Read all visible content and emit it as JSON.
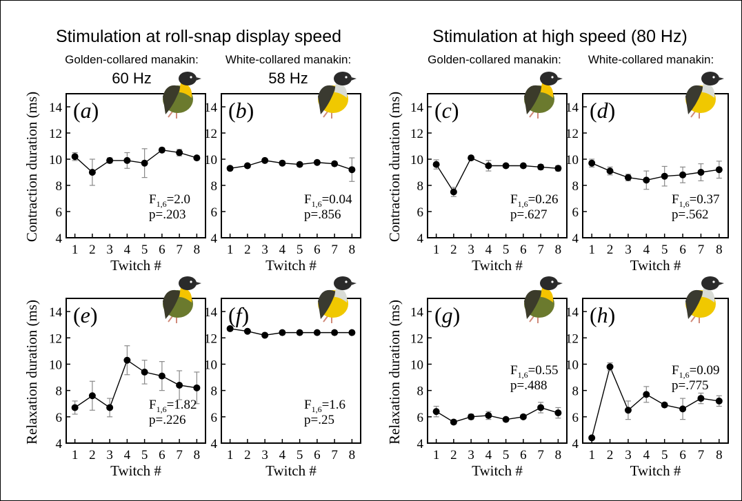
{
  "figure": {
    "left_group_title": "Stimulation at roll-snap display speed",
    "right_group_title": "Stimulation at high speed (80 Hz)",
    "species_golden": "Golden-collared manakin:",
    "species_white": "White-collared manakin:",
    "freq_golden": "60 Hz",
    "freq_white": "58 Hz",
    "row_ylabels": [
      "Contraction duration (ms)",
      "Relaxation duration (ms)"
    ],
    "xlabel": "Twitch #"
  },
  "chart_data": [
    {
      "panel": "a",
      "type": "line",
      "species": "golden",
      "x": [
        1,
        2,
        3,
        4,
        5,
        6,
        7,
        8
      ],
      "y": [
        10.2,
        9.0,
        9.9,
        9.9,
        9.7,
        10.7,
        10.5,
        10.1
      ],
      "err": [
        0.3,
        1.0,
        0.2,
        0.6,
        1.1,
        0.15,
        0.25,
        0.15
      ],
      "xlim": [
        0.5,
        8.5
      ],
      "ylim": [
        4,
        15
      ],
      "yticks": [
        4,
        6,
        8,
        10,
        12,
        14
      ],
      "stat_f": "=2.0",
      "stat_p": "p=.203",
      "stat_pos": "bottom"
    },
    {
      "panel": "b",
      "type": "line",
      "species": "white",
      "x": [
        1,
        2,
        3,
        4,
        5,
        6,
        7,
        8
      ],
      "y": [
        9.3,
        9.5,
        9.9,
        9.7,
        9.6,
        9.75,
        9.65,
        9.2
      ],
      "err": [
        0.15,
        0.15,
        0.15,
        0.15,
        0.15,
        0.15,
        0.15,
        0.9
      ],
      "xlim": [
        0.5,
        8.5
      ],
      "ylim": [
        4,
        15
      ],
      "yticks": [
        4,
        6,
        8,
        10,
        12,
        14
      ],
      "stat_f": "=0.04",
      "stat_p": "p=.856",
      "stat_pos": "bottom"
    },
    {
      "panel": "c",
      "type": "line",
      "species": "golden",
      "x": [
        1,
        2,
        3,
        4,
        5,
        6,
        7,
        8
      ],
      "y": [
        9.6,
        7.5,
        10.1,
        9.5,
        9.5,
        9.5,
        9.4,
        9.3
      ],
      "err": [
        0.35,
        0.35,
        0.15,
        0.4,
        0.15,
        0.15,
        0.2,
        0.2
      ],
      "xlim": [
        0.5,
        8.5
      ],
      "ylim": [
        4,
        15
      ],
      "yticks": [
        4,
        6,
        8,
        10,
        12,
        14
      ],
      "stat_f": "=0.26",
      "stat_p": "p=.627",
      "stat_pos": "bottom"
    },
    {
      "panel": "d",
      "type": "line",
      "species": "white",
      "x": [
        1,
        2,
        3,
        4,
        5,
        6,
        7,
        8
      ],
      "y": [
        9.7,
        9.1,
        8.6,
        8.4,
        8.7,
        8.8,
        9.0,
        9.2
      ],
      "err": [
        0.3,
        0.3,
        0.25,
        0.7,
        0.75,
        0.6,
        0.65,
        0.65
      ],
      "xlim": [
        0.5,
        8.5
      ],
      "ylim": [
        4,
        15
      ],
      "yticks": [
        4,
        6,
        8,
        10,
        12,
        14
      ],
      "stat_f": "=0.37",
      "stat_p": "p=.562",
      "stat_pos": "bottom"
    },
    {
      "panel": "e",
      "type": "line",
      "species": "golden",
      "x": [
        1,
        2,
        3,
        4,
        5,
        6,
        7,
        8
      ],
      "y": [
        6.7,
        7.6,
        6.7,
        10.3,
        9.4,
        9.1,
        8.4,
        8.2
      ],
      "err": [
        0.5,
        1.1,
        0.7,
        1.1,
        0.9,
        1.1,
        1.1,
        1.2
      ],
      "xlim": [
        0.5,
        8.5
      ],
      "ylim": [
        4,
        15
      ],
      "yticks": [
        4,
        6,
        8,
        10,
        12,
        14
      ],
      "stat_f": "=1.82",
      "stat_p": "p=.226",
      "stat_pos": "bottom"
    },
    {
      "panel": "f",
      "type": "line",
      "species": "white",
      "x": [
        1,
        2,
        3,
        4,
        5,
        6,
        7,
        8
      ],
      "y": [
        12.7,
        12.5,
        12.2,
        12.4,
        12.4,
        12.4,
        12.4,
        12.4
      ],
      "err": [
        0.1,
        0.1,
        0.1,
        0.1,
        0.1,
        0.1,
        0.1,
        0.1
      ],
      "xlim": [
        0.5,
        8.5
      ],
      "ylim": [
        4,
        15
      ],
      "yticks": [
        4,
        6,
        8,
        10,
        12,
        14
      ],
      "stat_f": "=1.6",
      "stat_p": "p=.25",
      "stat_pos": "bottom"
    },
    {
      "panel": "g",
      "type": "line",
      "species": "golden",
      "x": [
        1,
        2,
        3,
        4,
        5,
        6,
        7,
        8
      ],
      "y": [
        6.4,
        5.6,
        6.0,
        6.1,
        5.8,
        6.0,
        6.7,
        6.3
      ],
      "err": [
        0.4,
        0.15,
        0.2,
        0.3,
        0.15,
        0.15,
        0.4,
        0.4
      ],
      "xlim": [
        0.5,
        8.5
      ],
      "ylim": [
        4,
        15
      ],
      "yticks": [
        4,
        6,
        8,
        10,
        12,
        14
      ],
      "stat_f": "=0.55",
      "stat_p": "p=.488",
      "stat_pos": "top"
    },
    {
      "panel": "h",
      "type": "line",
      "species": "white",
      "x": [
        1,
        2,
        3,
        4,
        5,
        6,
        7,
        8
      ],
      "y": [
        4.4,
        9.8,
        6.5,
        7.7,
        6.9,
        6.6,
        7.4,
        7.2
      ],
      "err": [
        0.1,
        0.3,
        0.7,
        0.6,
        0.15,
        0.8,
        0.4,
        0.4
      ],
      "xlim": [
        0.5,
        8.5
      ],
      "ylim": [
        4,
        15
      ],
      "yticks": [
        4,
        6,
        8,
        10,
        12,
        14
      ],
      "stat_f": "=0.09",
      "stat_p": "p=.775",
      "stat_pos": "top"
    }
  ],
  "colors": {
    "axis": "#000000",
    "error_bar": "#888888",
    "golden_head": "#2a2a2a",
    "golden_throat": "#f5c400",
    "golden_body": "#6b7a2e",
    "golden_wing": "#3b3b2a",
    "white_head": "#2a2a2a",
    "white_throat": "#d9dcd6",
    "white_belly": "#f0c800",
    "white_wing": "#3a3a30",
    "bird_leg": "#d08a7a"
  }
}
